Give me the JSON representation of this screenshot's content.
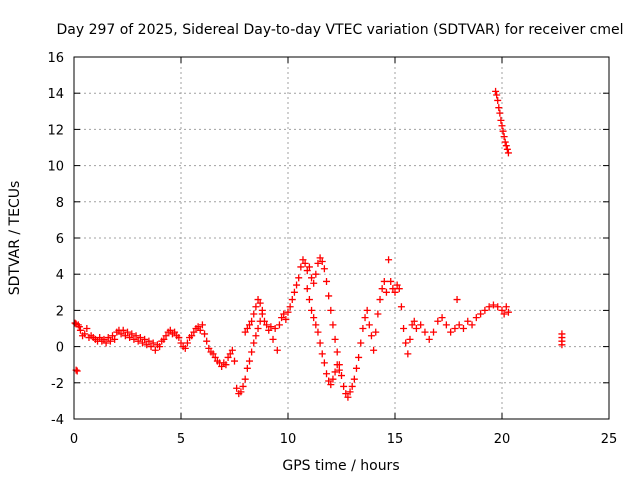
{
  "chart_data": {
    "type": "scatter",
    "title": "Day 297 of 2025, Sidereal Day-to-day VTEC variation (SDTVAR) for receiver cmel",
    "xlabel": "GPS time / hours",
    "ylabel": "SDTVAR / TECUs",
    "xlim": [
      0,
      25
    ],
    "ylim": [
      -4,
      16
    ],
    "xticks": [
      0,
      5,
      10,
      15,
      20,
      25
    ],
    "yticks": [
      -4,
      -2,
      0,
      2,
      4,
      6,
      8,
      10,
      12,
      14,
      16
    ],
    "grid": true,
    "marker": "+",
    "color": "#ff0000",
    "series": [
      {
        "name": "SDTVAR",
        "points": [
          [
            0.05,
            1.3
          ],
          [
            0.1,
            1.25
          ],
          [
            0.1,
            -1.3
          ],
          [
            0.15,
            -1.35
          ],
          [
            0.2,
            1.2
          ],
          [
            0.25,
            1.1
          ],
          [
            0.3,
            0.9
          ],
          [
            0.4,
            0.6
          ],
          [
            0.5,
            0.7
          ],
          [
            0.6,
            1.0
          ],
          [
            0.7,
            0.5
          ],
          [
            0.8,
            0.6
          ],
          [
            0.9,
            0.5
          ],
          [
            1.0,
            0.4
          ],
          [
            1.1,
            0.3
          ],
          [
            1.2,
            0.5
          ],
          [
            1.3,
            0.3
          ],
          [
            1.4,
            0.4
          ],
          [
            1.5,
            0.2
          ],
          [
            1.6,
            0.5
          ],
          [
            1.7,
            0.3
          ],
          [
            1.8,
            0.6
          ],
          [
            1.9,
            0.4
          ],
          [
            2.0,
            0.8
          ],
          [
            2.1,
            0.9
          ],
          [
            2.2,
            0.7
          ],
          [
            2.3,
            0.9
          ],
          [
            2.4,
            0.6
          ],
          [
            2.5,
            0.8
          ],
          [
            2.6,
            0.5
          ],
          [
            2.7,
            0.7
          ],
          [
            2.8,
            0.4
          ],
          [
            2.9,
            0.6
          ],
          [
            3.0,
            0.3
          ],
          [
            3.1,
            0.5
          ],
          [
            3.2,
            0.2
          ],
          [
            3.3,
            0.4
          ],
          [
            3.4,
            0.1
          ],
          [
            3.5,
            0.3
          ],
          [
            3.6,
            0.0
          ],
          [
            3.7,
            0.2
          ],
          [
            3.8,
            -0.2
          ],
          [
            3.9,
            0.1
          ],
          [
            4.0,
            0.0
          ],
          [
            4.1,
            0.3
          ],
          [
            4.2,
            0.4
          ],
          [
            4.3,
            0.6
          ],
          [
            4.4,
            0.8
          ],
          [
            4.5,
            0.9
          ],
          [
            4.6,
            0.7
          ],
          [
            4.7,
            0.8
          ],
          [
            4.8,
            0.6
          ],
          [
            4.9,
            0.5
          ],
          [
            5.0,
            0.2
          ],
          [
            5.1,
            0.0
          ],
          [
            5.2,
            -0.1
          ],
          [
            5.3,
            0.2
          ],
          [
            5.4,
            0.5
          ],
          [
            5.5,
            0.6
          ],
          [
            5.6,
            0.8
          ],
          [
            5.7,
            1.0
          ],
          [
            5.8,
            1.1
          ],
          [
            5.9,
            0.9
          ],
          [
            6.0,
            1.2
          ],
          [
            6.1,
            0.7
          ],
          [
            6.2,
            0.3
          ],
          [
            6.3,
            -0.1
          ],
          [
            6.4,
            -0.3
          ],
          [
            6.5,
            -0.4
          ],
          [
            6.6,
            -0.6
          ],
          [
            6.7,
            -0.8
          ],
          [
            6.8,
            -0.9
          ],
          [
            6.9,
            -1.1
          ],
          [
            7.0,
            -0.9
          ],
          [
            7.1,
            -1.0
          ],
          [
            7.2,
            -0.6
          ],
          [
            7.3,
            -0.4
          ],
          [
            7.4,
            -0.2
          ],
          [
            7.5,
            -0.8
          ],
          [
            7.6,
            -2.3
          ],
          [
            7.7,
            -2.6
          ],
          [
            7.8,
            -2.5
          ],
          [
            7.9,
            -2.2
          ],
          [
            8.0,
            -1.8
          ],
          [
            8.0,
            0.8
          ],
          [
            8.1,
            -1.2
          ],
          [
            8.1,
            1.0
          ],
          [
            8.2,
            -0.8
          ],
          [
            8.2,
            1.2
          ],
          [
            8.3,
            -0.3
          ],
          [
            8.3,
            1.4
          ],
          [
            8.4,
            0.2
          ],
          [
            8.4,
            1.8
          ],
          [
            8.5,
            0.6
          ],
          [
            8.5,
            2.2
          ],
          [
            8.6,
            1.0
          ],
          [
            8.6,
            2.6
          ],
          [
            8.7,
            1.4
          ],
          [
            8.7,
            2.4
          ],
          [
            8.8,
            1.8
          ],
          [
            8.8,
            2.0
          ],
          [
            8.9,
            1.4
          ],
          [
            9.0,
            1.2
          ],
          [
            9.1,
            0.9
          ],
          [
            9.2,
            1.1
          ],
          [
            9.3,
            0.4
          ],
          [
            9.4,
            1.0
          ],
          [
            9.5,
            -0.2
          ],
          [
            9.6,
            1.2
          ],
          [
            9.7,
            1.6
          ],
          [
            9.8,
            1.8
          ],
          [
            9.9,
            1.5
          ],
          [
            10.0,
            1.9
          ],
          [
            10.1,
            2.2
          ],
          [
            10.2,
            2.6
          ],
          [
            10.3,
            3.0
          ],
          [
            10.4,
            3.4
          ],
          [
            10.5,
            3.8
          ],
          [
            10.6,
            4.4
          ],
          [
            10.7,
            4.8
          ],
          [
            10.8,
            4.6
          ],
          [
            10.9,
            4.2
          ],
          [
            10.9,
            3.2
          ],
          [
            11.0,
            4.4
          ],
          [
            11.0,
            2.6
          ],
          [
            11.1,
            3.8
          ],
          [
            11.1,
            2.0
          ],
          [
            11.2,
            3.5
          ],
          [
            11.2,
            1.6
          ],
          [
            11.3,
            4.0
          ],
          [
            11.3,
            1.2
          ],
          [
            11.4,
            4.6
          ],
          [
            11.4,
            0.8
          ],
          [
            11.5,
            4.9
          ],
          [
            11.5,
            0.2
          ],
          [
            11.6,
            4.7
          ],
          [
            11.6,
            -0.4
          ],
          [
            11.7,
            4.3
          ],
          [
            11.7,
            -0.9
          ],
          [
            11.8,
            3.6
          ],
          [
            11.8,
            -1.5
          ],
          [
            11.9,
            2.8
          ],
          [
            11.9,
            -1.9
          ],
          [
            12.0,
            2.0
          ],
          [
            12.0,
            -2.1
          ],
          [
            12.1,
            1.2
          ],
          [
            12.1,
            -1.8
          ],
          [
            12.2,
            0.4
          ],
          [
            12.2,
            -1.4
          ],
          [
            12.3,
            -0.3
          ],
          [
            12.3,
            -1.0
          ],
          [
            12.4,
            -1.0
          ],
          [
            12.4,
            -1.3
          ],
          [
            12.5,
            -1.6
          ],
          [
            12.6,
            -2.2
          ],
          [
            12.7,
            -2.6
          ],
          [
            12.8,
            -2.8
          ],
          [
            12.9,
            -2.5
          ],
          [
            13.0,
            -2.2
          ],
          [
            13.1,
            -1.8
          ],
          [
            13.2,
            -1.2
          ],
          [
            13.3,
            -0.6
          ],
          [
            13.4,
            0.2
          ],
          [
            13.5,
            1.0
          ],
          [
            13.6,
            1.6
          ],
          [
            13.7,
            2.0
          ],
          [
            13.8,
            1.2
          ],
          [
            13.9,
            0.6
          ],
          [
            14.0,
            -0.2
          ],
          [
            14.1,
            0.8
          ],
          [
            14.2,
            1.8
          ],
          [
            14.3,
            2.6
          ],
          [
            14.4,
            3.2
          ],
          [
            14.5,
            3.6
          ],
          [
            14.6,
            3.0
          ],
          [
            14.7,
            4.8
          ],
          [
            14.8,
            3.6
          ],
          [
            14.9,
            3.2
          ],
          [
            15.0,
            3.0
          ],
          [
            15.1,
            3.4
          ],
          [
            15.2,
            3.2
          ],
          [
            15.3,
            2.2
          ],
          [
            15.4,
            1.0
          ],
          [
            15.5,
            0.2
          ],
          [
            15.6,
            -0.4
          ],
          [
            15.7,
            0.4
          ],
          [
            15.8,
            1.2
          ],
          [
            15.9,
            1.4
          ],
          [
            16.0,
            1.0
          ],
          [
            16.2,
            1.2
          ],
          [
            16.4,
            0.8
          ],
          [
            16.6,
            0.4
          ],
          [
            16.8,
            0.8
          ],
          [
            17.0,
            1.4
          ],
          [
            17.2,
            1.6
          ],
          [
            17.4,
            1.2
          ],
          [
            17.6,
            0.8
          ],
          [
            17.8,
            1.0
          ],
          [
            17.9,
            2.6
          ],
          [
            18.0,
            1.2
          ],
          [
            18.2,
            1.0
          ],
          [
            18.4,
            1.4
          ],
          [
            18.6,
            1.2
          ],
          [
            18.8,
            1.6
          ],
          [
            19.0,
            1.8
          ],
          [
            19.2,
            2.0
          ],
          [
            19.4,
            2.2
          ],
          [
            19.6,
            2.3
          ],
          [
            19.8,
            2.2
          ],
          [
            20.0,
            2.0
          ],
          [
            20.1,
            1.8
          ],
          [
            20.2,
            2.2
          ],
          [
            20.3,
            1.9
          ],
          [
            19.7,
            14.1
          ],
          [
            19.75,
            13.9
          ],
          [
            19.8,
            13.6
          ],
          [
            19.85,
            13.2
          ],
          [
            19.9,
            12.9
          ],
          [
            19.95,
            12.5
          ],
          [
            20.0,
            12.2
          ],
          [
            20.05,
            11.9
          ],
          [
            20.1,
            11.6
          ],
          [
            20.15,
            11.3
          ],
          [
            20.2,
            11.1
          ],
          [
            20.25,
            10.9
          ],
          [
            20.3,
            10.7
          ],
          [
            22.8,
            0.7
          ],
          [
            22.8,
            0.5
          ],
          [
            22.8,
            0.3
          ],
          [
            22.8,
            0.1
          ]
        ]
      }
    ]
  }
}
